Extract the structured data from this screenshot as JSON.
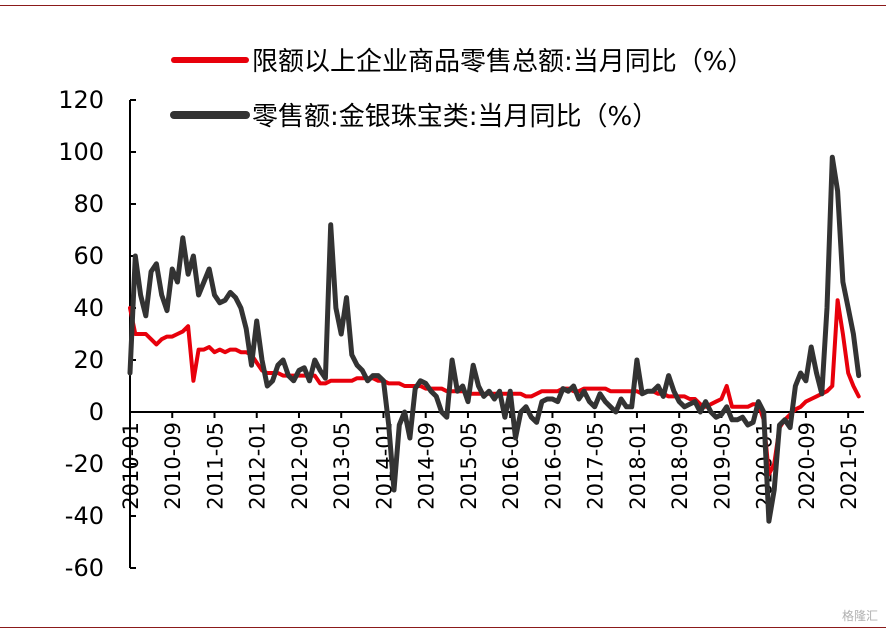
{
  "watermark": "格隆汇",
  "chart_data": {
    "type": "line",
    "x_ticks": [
      "2010-01",
      "2010-09",
      "2011-05",
      "2012-01",
      "2012-09",
      "2013-05",
      "2014-01",
      "2014-09",
      "2015-05",
      "2016-01",
      "2016-09",
      "2017-05",
      "2018-01",
      "2018-09",
      "2019-05",
      "2020-01",
      "2020-09",
      "2021-05"
    ],
    "y_ticks": [
      120,
      100,
      80,
      60,
      40,
      20,
      0,
      -20,
      -40,
      -60
    ],
    "ylim": [
      -60,
      120
    ],
    "xlim": [
      "2010-01",
      "2021-08"
    ],
    "grid": false,
    "legend_position": "top",
    "series": [
      {
        "name": "限额以上企业商品零售总额:当月同比（%）",
        "color": "#e8000b",
        "points": [
          [
            "2010-01",
            40
          ],
          [
            "2010-02",
            30
          ],
          [
            "2010-03",
            30
          ],
          [
            "2010-04",
            30
          ],
          [
            "2010-05",
            28
          ],
          [
            "2010-06",
            26
          ],
          [
            "2010-07",
            28
          ],
          [
            "2010-08",
            29
          ],
          [
            "2010-09",
            29
          ],
          [
            "2010-10",
            30
          ],
          [
            "2010-11",
            31
          ],
          [
            "2010-12",
            33
          ],
          [
            "2011-01",
            12
          ],
          [
            "2011-02",
            24
          ],
          [
            "2011-03",
            24
          ],
          [
            "2011-04",
            25
          ],
          [
            "2011-05",
            23
          ],
          [
            "2011-06",
            24
          ],
          [
            "2011-07",
            23
          ],
          [
            "2011-08",
            24
          ],
          [
            "2011-09",
            24
          ],
          [
            "2011-10",
            23
          ],
          [
            "2011-11",
            23
          ],
          [
            "2011-12",
            22
          ],
          [
            "2012-01",
            19
          ],
          [
            "2012-02",
            16
          ],
          [
            "2012-03",
            15
          ],
          [
            "2012-04",
            15
          ],
          [
            "2012-05",
            15
          ],
          [
            "2012-06",
            14
          ],
          [
            "2012-07",
            14
          ],
          [
            "2012-08",
            14
          ],
          [
            "2012-09",
            14
          ],
          [
            "2012-10",
            14
          ],
          [
            "2012-11",
            14
          ],
          [
            "2012-12",
            14
          ],
          [
            "2013-01",
            11
          ],
          [
            "2013-02",
            11
          ],
          [
            "2013-03",
            12
          ],
          [
            "2013-04",
            12
          ],
          [
            "2013-05",
            12
          ],
          [
            "2013-06",
            12
          ],
          [
            "2013-07",
            12
          ],
          [
            "2013-08",
            13
          ],
          [
            "2013-09",
            13
          ],
          [
            "2013-10",
            13
          ],
          [
            "2013-11",
            13
          ],
          [
            "2013-12",
            12
          ],
          [
            "2014-01",
            12
          ],
          [
            "2014-02",
            11
          ],
          [
            "2014-03",
            11
          ],
          [
            "2014-04",
            11
          ],
          [
            "2014-05",
            10
          ],
          [
            "2014-06",
            10
          ],
          [
            "2014-07",
            10
          ],
          [
            "2014-08",
            10
          ],
          [
            "2014-09",
            9
          ],
          [
            "2014-10",
            9
          ],
          [
            "2014-11",
            9
          ],
          [
            "2014-12",
            9
          ],
          [
            "2015-01",
            8
          ],
          [
            "2015-02",
            8
          ],
          [
            "2015-03",
            8
          ],
          [
            "2015-04",
            8
          ],
          [
            "2015-05",
            7
          ],
          [
            "2015-06",
            7
          ],
          [
            "2015-07",
            7
          ],
          [
            "2015-08",
            7
          ],
          [
            "2015-09",
            7
          ],
          [
            "2015-10",
            7
          ],
          [
            "2015-11",
            7
          ],
          [
            "2015-12",
            7
          ],
          [
            "2016-01",
            7
          ],
          [
            "2016-02",
            7
          ],
          [
            "2016-03",
            7
          ],
          [
            "2016-04",
            6
          ],
          [
            "2016-05",
            6
          ],
          [
            "2016-06",
            7
          ],
          [
            "2016-07",
            8
          ],
          [
            "2016-08",
            8
          ],
          [
            "2016-09",
            8
          ],
          [
            "2016-10",
            8
          ],
          [
            "2016-11",
            9
          ],
          [
            "2016-12",
            9
          ],
          [
            "2017-01",
            8
          ],
          [
            "2017-02",
            8
          ],
          [
            "2017-03",
            9
          ],
          [
            "2017-04",
            9
          ],
          [
            "2017-05",
            9
          ],
          [
            "2017-06",
            9
          ],
          [
            "2017-07",
            9
          ],
          [
            "2017-08",
            8
          ],
          [
            "2017-09",
            8
          ],
          [
            "2017-10",
            8
          ],
          [
            "2017-11",
            8
          ],
          [
            "2017-12",
            8
          ],
          [
            "2018-01",
            8
          ],
          [
            "2018-02",
            7
          ],
          [
            "2018-03",
            8
          ],
          [
            "2018-04",
            8
          ],
          [
            "2018-05",
            7
          ],
          [
            "2018-06",
            7
          ],
          [
            "2018-07",
            6
          ],
          [
            "2018-08",
            6
          ],
          [
            "2018-09",
            6
          ],
          [
            "2018-10",
            6
          ],
          [
            "2018-11",
            5
          ],
          [
            "2018-12",
            5
          ],
          [
            "2019-01",
            3
          ],
          [
            "2019-02",
            2
          ],
          [
            "2019-03",
            3
          ],
          [
            "2019-04",
            4
          ],
          [
            "2019-05",
            5
          ],
          [
            "2019-06",
            10
          ],
          [
            "2019-07",
            2
          ],
          [
            "2019-08",
            2
          ],
          [
            "2019-09",
            2
          ],
          [
            "2019-10",
            2
          ],
          [
            "2019-11",
            3
          ],
          [
            "2019-12",
            3
          ],
          [
            "2020-01",
            -3
          ],
          [
            "2020-02",
            -24
          ],
          [
            "2020-03",
            -20
          ],
          [
            "2020-04",
            -6
          ],
          [
            "2020-05",
            -3
          ],
          [
            "2020-06",
            -1
          ],
          [
            "2020-07",
            1
          ],
          [
            "2020-08",
            2
          ],
          [
            "2020-09",
            4
          ],
          [
            "2020-10",
            5
          ],
          [
            "2020-11",
            6
          ],
          [
            "2020-12",
            7
          ],
          [
            "2021-01",
            8
          ],
          [
            "2021-02",
            10
          ],
          [
            "2021-03",
            43
          ],
          [
            "2021-04",
            30
          ],
          [
            "2021-05",
            15
          ],
          [
            "2021-06",
            10
          ],
          [
            "2021-07",
            6
          ]
        ]
      },
      {
        "name": "零售额:金银珠宝类:当月同比（%）",
        "color": "#333333",
        "points": [
          [
            "2010-01",
            15
          ],
          [
            "2010-02",
            60
          ],
          [
            "2010-03",
            45
          ],
          [
            "2010-04",
            37
          ],
          [
            "2010-05",
            54
          ],
          [
            "2010-06",
            57
          ],
          [
            "2010-07",
            45
          ],
          [
            "2010-08",
            39
          ],
          [
            "2010-09",
            55
          ],
          [
            "2010-10",
            50
          ],
          [
            "2010-11",
            67
          ],
          [
            "2010-12",
            53
          ],
          [
            "2011-01",
            60
          ],
          [
            "2011-02",
            45
          ],
          [
            "2011-03",
            50
          ],
          [
            "2011-04",
            55
          ],
          [
            "2011-05",
            45
          ],
          [
            "2011-06",
            42
          ],
          [
            "2011-07",
            43
          ],
          [
            "2011-08",
            46
          ],
          [
            "2011-09",
            44
          ],
          [
            "2011-10",
            40
          ],
          [
            "2011-11",
            32
          ],
          [
            "2011-12",
            18
          ],
          [
            "2012-01",
            35
          ],
          [
            "2012-02",
            20
          ],
          [
            "2012-03",
            10
          ],
          [
            "2012-04",
            12
          ],
          [
            "2012-05",
            18
          ],
          [
            "2012-06",
            20
          ],
          [
            "2012-07",
            14
          ],
          [
            "2012-08",
            12
          ],
          [
            "2012-09",
            16
          ],
          [
            "2012-10",
            17
          ],
          [
            "2012-11",
            12
          ],
          [
            "2012-12",
            20
          ],
          [
            "2013-01",
            16
          ],
          [
            "2013-02",
            13
          ],
          [
            "2013-03",
            72
          ],
          [
            "2013-04",
            40
          ],
          [
            "2013-05",
            30
          ],
          [
            "2013-06",
            44
          ],
          [
            "2013-07",
            22
          ],
          [
            "2013-08",
            18
          ],
          [
            "2013-09",
            16
          ],
          [
            "2013-10",
            12
          ],
          [
            "2013-11",
            14
          ],
          [
            "2013-12",
            14
          ],
          [
            "2014-01",
            12
          ],
          [
            "2014-02",
            -5
          ],
          [
            "2014-03",
            -30
          ],
          [
            "2014-04",
            -5
          ],
          [
            "2014-05",
            0
          ],
          [
            "2014-06",
            -10
          ],
          [
            "2014-07",
            9
          ],
          [
            "2014-08",
            12
          ],
          [
            "2014-09",
            11
          ],
          [
            "2014-10",
            8
          ],
          [
            "2014-11",
            6
          ],
          [
            "2014-12",
            0
          ],
          [
            "2015-01",
            -2
          ],
          [
            "2015-02",
            20
          ],
          [
            "2015-03",
            8
          ],
          [
            "2015-04",
            10
          ],
          [
            "2015-05",
            4
          ],
          [
            "2015-06",
            18
          ],
          [
            "2015-07",
            10
          ],
          [
            "2015-08",
            6
          ],
          [
            "2015-09",
            8
          ],
          [
            "2015-10",
            5
          ],
          [
            "2015-11",
            8
          ],
          [
            "2015-12",
            -2
          ],
          [
            "2016-01",
            8
          ],
          [
            "2016-02",
            -10
          ],
          [
            "2016-03",
            0
          ],
          [
            "2016-04",
            2
          ],
          [
            "2016-05",
            -2
          ],
          [
            "2016-06",
            -4
          ],
          [
            "2016-07",
            4
          ],
          [
            "2016-08",
            5
          ],
          [
            "2016-09",
            5
          ],
          [
            "2016-10",
            4
          ],
          [
            "2016-11",
            9
          ],
          [
            "2016-12",
            8
          ],
          [
            "2017-01",
            10
          ],
          [
            "2017-02",
            5
          ],
          [
            "2017-03",
            8
          ],
          [
            "2017-04",
            4
          ],
          [
            "2017-05",
            2
          ],
          [
            "2017-06",
            7
          ],
          [
            "2017-07",
            4
          ],
          [
            "2017-08",
            2
          ],
          [
            "2017-09",
            0
          ],
          [
            "2017-10",
            5
          ],
          [
            "2017-11",
            2
          ],
          [
            "2017-12",
            2
          ],
          [
            "2018-01",
            20
          ],
          [
            "2018-02",
            7
          ],
          [
            "2018-03",
            8
          ],
          [
            "2018-04",
            8
          ],
          [
            "2018-05",
            10
          ],
          [
            "2018-06",
            6
          ],
          [
            "2018-07",
            14
          ],
          [
            "2018-08",
            8
          ],
          [
            "2018-09",
            4
          ],
          [
            "2018-10",
            2
          ],
          [
            "2018-11",
            3
          ],
          [
            "2018-12",
            4
          ],
          [
            "2019-01",
            0
          ],
          [
            "2019-02",
            4
          ],
          [
            "2019-03",
            0
          ],
          [
            "2019-04",
            -2
          ],
          [
            "2019-05",
            -1
          ],
          [
            "2019-06",
            2
          ],
          [
            "2019-07",
            -3
          ],
          [
            "2019-08",
            -3
          ],
          [
            "2019-09",
            -2
          ],
          [
            "2019-10",
            -5
          ],
          [
            "2019-11",
            -4
          ],
          [
            "2019-12",
            4
          ],
          [
            "2020-01",
            0
          ],
          [
            "2020-02",
            -42
          ],
          [
            "2020-03",
            -30
          ],
          [
            "2020-04",
            -5
          ],
          [
            "2020-05",
            -3
          ],
          [
            "2020-06",
            -6
          ],
          [
            "2020-07",
            10
          ],
          [
            "2020-08",
            15
          ],
          [
            "2020-09",
            12
          ],
          [
            "2020-10",
            25
          ],
          [
            "2020-11",
            15
          ],
          [
            "2020-12",
            7
          ],
          [
            "2021-01",
            40
          ],
          [
            "2021-02",
            98
          ],
          [
            "2021-03",
            85
          ],
          [
            "2021-04",
            50
          ],
          [
            "2021-05",
            40
          ],
          [
            "2021-06",
            30
          ],
          [
            "2021-07",
            14
          ]
        ]
      }
    ]
  }
}
